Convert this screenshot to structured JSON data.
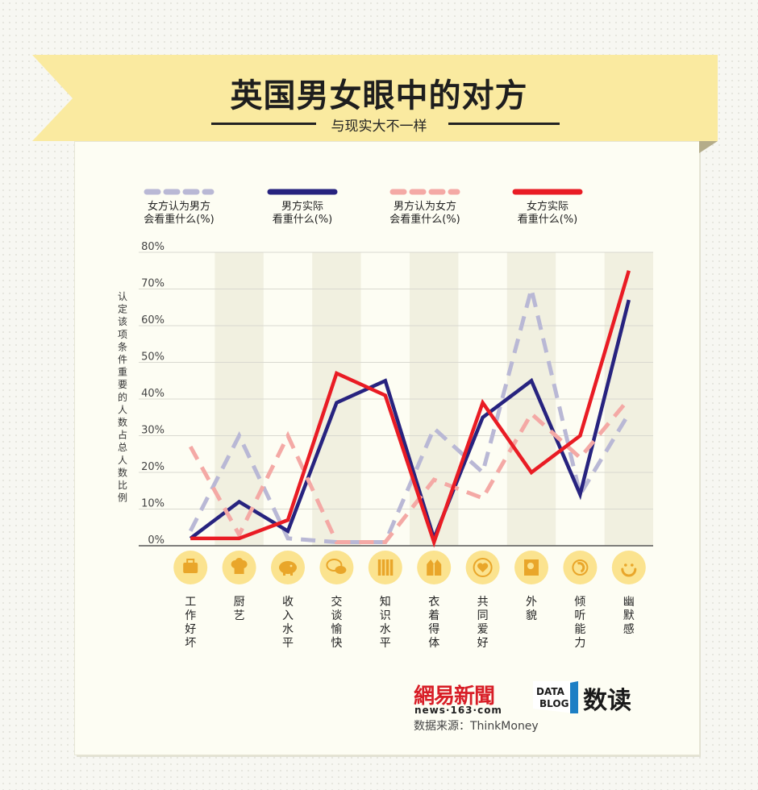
{
  "header": {
    "title": "英国男女眼中的对方",
    "subtitle": "与现实大不一样"
  },
  "colors": {
    "ribbon": "#faeaa0",
    "men_actual": "#27237f",
    "women_actual": "#e91c24",
    "women_think_men": "#b9b8d5",
    "men_think_women": "#f4a9a5",
    "icon_circle": "#fbe38f",
    "icon_fg": "#e9a62a",
    "band": "#f1f0e0"
  },
  "chart_data": {
    "type": "line",
    "ylabel": "认定该项条件重要的人数占总人数比例",
    "ylim": [
      0,
      80
    ],
    "yticks": [
      "0%",
      "10%",
      "20%",
      "30%",
      "40%",
      "50%",
      "60%",
      "70%",
      "80%"
    ],
    "categories": [
      "工作好坏",
      "厨艺",
      "收入水平",
      "交谈愉快",
      "知识水平",
      "衣着得体",
      "共同爱好",
      "外貌",
      "倾听能力",
      "幽默感"
    ],
    "series": [
      {
        "name": "女方认为男方会看重什么(%)",
        "style": "dashed",
        "color": "#b9b8d5",
        "values": [
          4,
          30,
          2,
          1,
          1,
          32,
          20,
          70,
          14,
          36
        ]
      },
      {
        "name": "男方实际看重什么(%)",
        "style": "solid",
        "color": "#27237f",
        "values": [
          2,
          12,
          4,
          39,
          45,
          2,
          35,
          45,
          14,
          67
        ]
      },
      {
        "name": "男方认为女方会看重什么(%)",
        "style": "dashed",
        "color": "#f4a9a5",
        "values": [
          27,
          3,
          30,
          1,
          1,
          18,
          13,
          36,
          24,
          40
        ]
      },
      {
        "name": "女方实际看重什么(%)",
        "style": "solid",
        "color": "#e91c24",
        "values": [
          2,
          2,
          7,
          47,
          41,
          1,
          39,
          20,
          30,
          75
        ]
      }
    ]
  },
  "legend": [
    {
      "line1": "女方认为男方",
      "line2": "会看重什么(%)"
    },
    {
      "line1": "男方实际",
      "line2": "看重什么(%)"
    },
    {
      "line1": "男方认为女方",
      "line2": "会看重什么(%)"
    },
    {
      "line1": "女方实际",
      "line2": "看重什么(%)"
    }
  ],
  "icons": [
    "briefcase-icon",
    "chef-hat-icon",
    "piggy-bank-icon",
    "chat-bubbles-icon",
    "books-icon",
    "jacket-icon",
    "heart-icon",
    "face-portrait-icon",
    "ear-listening-icon",
    "smiley-icon"
  ],
  "footer": {
    "brand": "網易新聞",
    "brand_url": "news·163·com",
    "badge_line1": "DATA",
    "badge_line2": "BLOG",
    "blog_name": "数读",
    "source": "数据来源：ThinkMoney"
  }
}
